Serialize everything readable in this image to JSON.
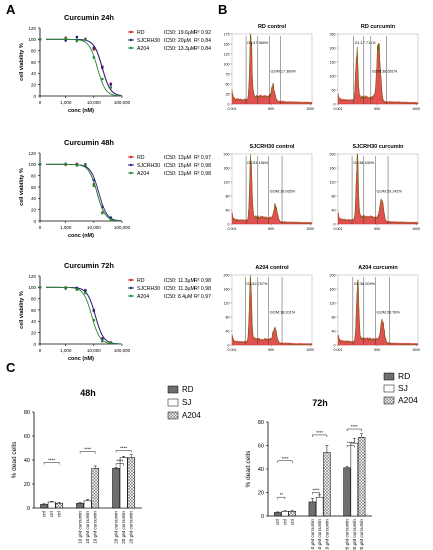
{
  "panel_labels": [
    "A",
    "B",
    "C"
  ],
  "colors": {
    "RD": "#cc2222",
    "SJCRH30": "#222288",
    "A204": "#228833",
    "hist_fill": "#dd3333",
    "hist_line": "#556b00"
  },
  "chart_data": [
    {
      "type": "line",
      "title": "Curcumin 24h",
      "xlabel": "conc (nM)",
      "ylabel": "cell viability %",
      "xscale": "log",
      "xlim": [
        0,
        100000
      ],
      "ylim": [
        0,
        120
      ],
      "xticks": [
        "0",
        "1,000",
        "10,000",
        "100,000"
      ],
      "yticks": [
        "0",
        "20",
        "40",
        "60",
        "80",
        "100",
        "120"
      ],
      "legend": [
        {
          "name": "RD",
          "ic50": "19.6μM",
          "r2": "0.92",
          "color": "#cc2222"
        },
        {
          "name": "SJCRH30",
          "ic50": "20μM",
          "r2": "0.84",
          "color": "#222288"
        },
        {
          "name": "A204",
          "ic50": "13.3μM",
          "r2": "0.84",
          "color": "#228833"
        }
      ],
      "series": [
        {
          "name": "RD",
          "ic50": 19600,
          "x": [
            0,
            1000,
            2500,
            5000,
            10000,
            20000,
            40000
          ],
          "values": [
            100,
            103,
            99,
            101,
            82,
            52,
            22
          ]
        },
        {
          "name": "SJCRH30",
          "ic50": 20000,
          "x": [
            0,
            1000,
            2500,
            5000,
            10000,
            20000,
            40000
          ],
          "values": [
            100,
            98,
            104,
            100,
            85,
            50,
            20
          ]
        },
        {
          "name": "A204",
          "ic50": 13300,
          "x": [
            0,
            1000,
            2500,
            5000,
            10000,
            20000,
            40000
          ],
          "values": [
            100,
            101,
            97,
            100,
            68,
            30,
            15
          ]
        }
      ]
    },
    {
      "type": "line",
      "title": "Curcumin 48h",
      "xlabel": "conc (nM)",
      "ylabel": "cell viability %",
      "xscale": "log",
      "xlim": [
        0,
        100000
      ],
      "ylim": [
        0,
        120
      ],
      "xticks": [
        "0",
        "1,000",
        "10,000",
        "100,000"
      ],
      "yticks": [
        "0",
        "20",
        "40",
        "60",
        "80",
        "100",
        "120"
      ],
      "legend": [
        {
          "name": "RD",
          "ic50": "13μM",
          "r2": "0.97",
          "color": "#cc2222"
        },
        {
          "name": "SJCRH30",
          "ic50": "15μM",
          "r2": "0.98",
          "color": "#222288"
        },
        {
          "name": "A204",
          "ic50": "13μM",
          "r2": "0.98",
          "color": "#228833"
        }
      ],
      "series": [
        {
          "name": "RD",
          "ic50": 13000,
          "x": [
            0,
            1000,
            2500,
            5000,
            10000,
            20000,
            40000
          ],
          "values": [
            100,
            99,
            101,
            97,
            65,
            15,
            4
          ]
        },
        {
          "name": "SJCRH30",
          "ic50": 15000,
          "x": [
            0,
            1000,
            2500,
            5000,
            10000,
            20000,
            40000
          ],
          "values": [
            100,
            101,
            99,
            100,
            72,
            25,
            6
          ]
        },
        {
          "name": "A204",
          "ic50": 13000,
          "x": [
            0,
            1000,
            2500,
            5000,
            10000,
            20000,
            40000
          ],
          "values": [
            100,
            100,
            98,
            99,
            62,
            14,
            3
          ]
        }
      ]
    },
    {
      "type": "line",
      "title": "Curcumin 72h",
      "xlabel": "conc (nM)",
      "ylabel": "cell viability %",
      "xscale": "log",
      "xlim": [
        0,
        100000
      ],
      "ylim": [
        0,
        120
      ],
      "xticks": [
        "0",
        "1,000",
        "10,000",
        "100,000"
      ],
      "yticks": [
        "0",
        "20",
        "40",
        "60",
        "80",
        "100",
        "120"
      ],
      "legend": [
        {
          "name": "RD",
          "ic50": "11.3μM",
          "r2": "0.98",
          "color": "#cc2222"
        },
        {
          "name": "SJCRH30",
          "ic50": "11.3μM",
          "r2": "0.98",
          "color": "#222288"
        },
        {
          "name": "A204",
          "ic50": "8.4μM",
          "r2": "0.97",
          "color": "#228833"
        }
      ],
      "series": [
        {
          "name": "RD",
          "ic50": 11300,
          "x": [
            0,
            1000,
            2500,
            5000,
            10000,
            20000,
            40000
          ],
          "values": [
            100,
            100,
            97,
            93,
            58,
            10,
            3
          ]
        },
        {
          "name": "SJCRH30",
          "ic50": 11300,
          "x": [
            0,
            1000,
            2500,
            5000,
            10000,
            20000,
            40000
          ],
          "values": [
            100,
            98,
            99,
            95,
            60,
            9,
            2
          ]
        },
        {
          "name": "A204",
          "ic50": 8400,
          "x": [
            0,
            1000,
            2500,
            5000,
            10000,
            20000,
            40000
          ],
          "values": [
            100,
            99,
            96,
            90,
            42,
            5,
            2
          ]
        }
      ]
    },
    {
      "type": "area",
      "title": "RD control",
      "xticks": [
        "0.001",
        "500",
        "1000"
      ],
      "yticks": [
        "0",
        "25",
        "50",
        "75",
        "100",
        "125",
        "150",
        "175"
      ],
      "xlim": [
        0,
        1023
      ],
      "ylim": [
        0,
        175
      ],
      "gates": [
        {
          "label": "G1:47.369%",
          "lo": 180,
          "hi": 330
        },
        {
          "label": "G2/M:17.389%",
          "lo": 480,
          "hi": 620
        }
      ],
      "peaks": [
        {
          "x": 240,
          "h": 170
        },
        {
          "x": 530,
          "h": 30
        }
      ],
      "baseline": 14
    },
    {
      "type": "area",
      "title": "RD curcumin",
      "xticks": [
        "0.001",
        "500",
        "1000"
      ],
      "yticks": [
        "0",
        "50",
        "100",
        "150",
        "200",
        "250"
      ],
      "xlim": [
        0,
        1023
      ],
      "ylim": [
        0,
        250
      ],
      "gates": [
        {
          "label": "G1:17.711%",
          "lo": 200,
          "hi": 330
        },
        {
          "label": "G2/M:38.651%",
          "lo": 420,
          "hi": 620
        }
      ],
      "peaks": [
        {
          "x": 240,
          "h": 185
        },
        {
          "x": 520,
          "h": 210
        }
      ],
      "baseline": 18
    },
    {
      "type": "area",
      "title": "SJCRH30 control",
      "xticks": [
        "0.001",
        "500",
        "1000"
      ],
      "yticks": [
        "0",
        "40",
        "80",
        "120",
        "160",
        "200"
      ],
      "xlim": [
        0,
        1023
      ],
      "ylim": [
        0,
        200
      ],
      "gates": [
        {
          "label": "G1:53.156%",
          "lo": 180,
          "hi": 330
        },
        {
          "label": "G2/M:19.935%",
          "lo": 470,
          "hi": 640
        }
      ],
      "peaks": [
        {
          "x": 240,
          "h": 190
        },
        {
          "x": 560,
          "h": 42
        }
      ],
      "baseline": 14
    },
    {
      "type": "area",
      "title": "SJCRH30 curcumin",
      "xticks": [
        "0.001",
        "500",
        "1000"
      ],
      "yticks": [
        "0",
        "40",
        "80",
        "120",
        "160",
        "200"
      ],
      "xlim": [
        0,
        1023
      ],
      "ylim": [
        0,
        200
      ],
      "gates": [
        {
          "label": "G1:38.430%",
          "lo": 180,
          "hi": 330
        },
        {
          "label": "G2/M:29.142%",
          "lo": 480,
          "hi": 640
        }
      ],
      "peaks": [
        {
          "x": 245,
          "h": 175
        },
        {
          "x": 560,
          "h": 60
        }
      ],
      "baseline": 15
    },
    {
      "type": "area",
      "title": "A204 control",
      "xticks": [
        "0.001",
        "500",
        "1000"
      ],
      "yticks": [
        "0",
        "40",
        "80",
        "120",
        "160",
        "200"
      ],
      "xlim": [
        0,
        1023
      ],
      "ylim": [
        0,
        200
      ],
      "gates": [
        {
          "label": "G1:52.757%",
          "lo": 170,
          "hi": 330
        },
        {
          "label": "G2/M:18.201%",
          "lo": 470,
          "hi": 640
        }
      ],
      "peaks": [
        {
          "x": 235,
          "h": 195
        },
        {
          "x": 550,
          "h": 40
        }
      ],
      "baseline": 12
    },
    {
      "type": "area",
      "title": "A204 curcumin",
      "xticks": [
        "0.001",
        "500",
        "1000"
      ],
      "yticks": [
        "0",
        "40",
        "80",
        "120",
        "160",
        "200"
      ],
      "xlim": [
        0,
        1023
      ],
      "ylim": [
        0,
        200
      ],
      "gates": [
        {
          "label": "G1:38.009%",
          "lo": 190,
          "hi": 330
        },
        {
          "label": "G2/M:28.78%",
          "lo": 480,
          "hi": 660
        }
      ],
      "peaks": [
        {
          "x": 250,
          "h": 175
        },
        {
          "x": 570,
          "h": 62
        }
      ],
      "baseline": 13
    },
    {
      "type": "bar",
      "title": "48h",
      "ylabel": "% dead cells",
      "ylim": [
        0,
        80
      ],
      "yticks": [
        "0",
        "20",
        "40",
        "60",
        "80"
      ],
      "categories": [
        "ctrl",
        "10 μM curcumin",
        "20 μM curcumin"
      ],
      "series": [
        {
          "name": "RD",
          "values": [
            3,
            4,
            33
          ],
          "errors": [
            0.5,
            0.5,
            1
          ]
        },
        {
          "name": "SJ",
          "values": [
            5,
            6,
            42
          ],
          "errors": [
            0.5,
            1,
            1
          ]
        },
        {
          "name": "A204",
          "values": [
            4,
            33,
            42
          ],
          "errors": [
            0.5,
            2,
            2.5
          ]
        }
      ],
      "significance": [
        {
          "cat": 0,
          "label": "****",
          "span": [
            0,
            2
          ],
          "y": 38
        },
        {
          "cat": 1,
          "label": "****",
          "span": [
            0,
            2
          ],
          "y": 47
        },
        {
          "cat": 2,
          "label": "****",
          "span": [
            0,
            1
          ],
          "y": 37
        },
        {
          "cat": 2,
          "label": "****",
          "span": [
            0,
            2
          ],
          "y": 48
        }
      ]
    },
    {
      "type": "bar",
      "title": "72h",
      "ylabel": "% dead cells",
      "ylim": [
        0,
        80
      ],
      "yticks": [
        "0",
        "20",
        "40",
        "60",
        "80"
      ],
      "categories": [
        "ctrl",
        "10 μM curcumin",
        "20 μM curcumin"
      ],
      "series": [
        {
          "name": "RD",
          "values": [
            3,
            12,
            41
          ],
          "errors": [
            0.5,
            3,
            1
          ]
        },
        {
          "name": "SJ",
          "values": [
            4,
            16,
            62
          ],
          "errors": [
            0.5,
            2,
            4
          ]
        },
        {
          "name": "A204",
          "values": [
            4,
            54,
            67
          ],
          "errors": [
            0.5,
            6,
            3
          ]
        }
      ],
      "significance": [
        {
          "cat": 0,
          "label": "**",
          "span": [
            0,
            1
          ],
          "y": 16
        },
        {
          "cat": 0,
          "label": "****",
          "span": [
            0,
            2
          ],
          "y": 47
        },
        {
          "cat": 1,
          "label": "****",
          "span": [
            0,
            1
          ],
          "y": 20
        },
        {
          "cat": 1,
          "label": "****",
          "span": [
            0,
            2
          ],
          "y": 69
        },
        {
          "cat": 2,
          "label": "****",
          "span": [
            0,
            1
          ],
          "y": 60
        },
        {
          "cat": 2,
          "label": "****",
          "span": [
            0,
            2
          ],
          "y": 74
        }
      ]
    }
  ],
  "bar_legend": [
    {
      "name": "RD",
      "pattern": "dark"
    },
    {
      "name": "SJ",
      "pattern": "light"
    },
    {
      "name": "A204",
      "pattern": "hatch"
    }
  ]
}
